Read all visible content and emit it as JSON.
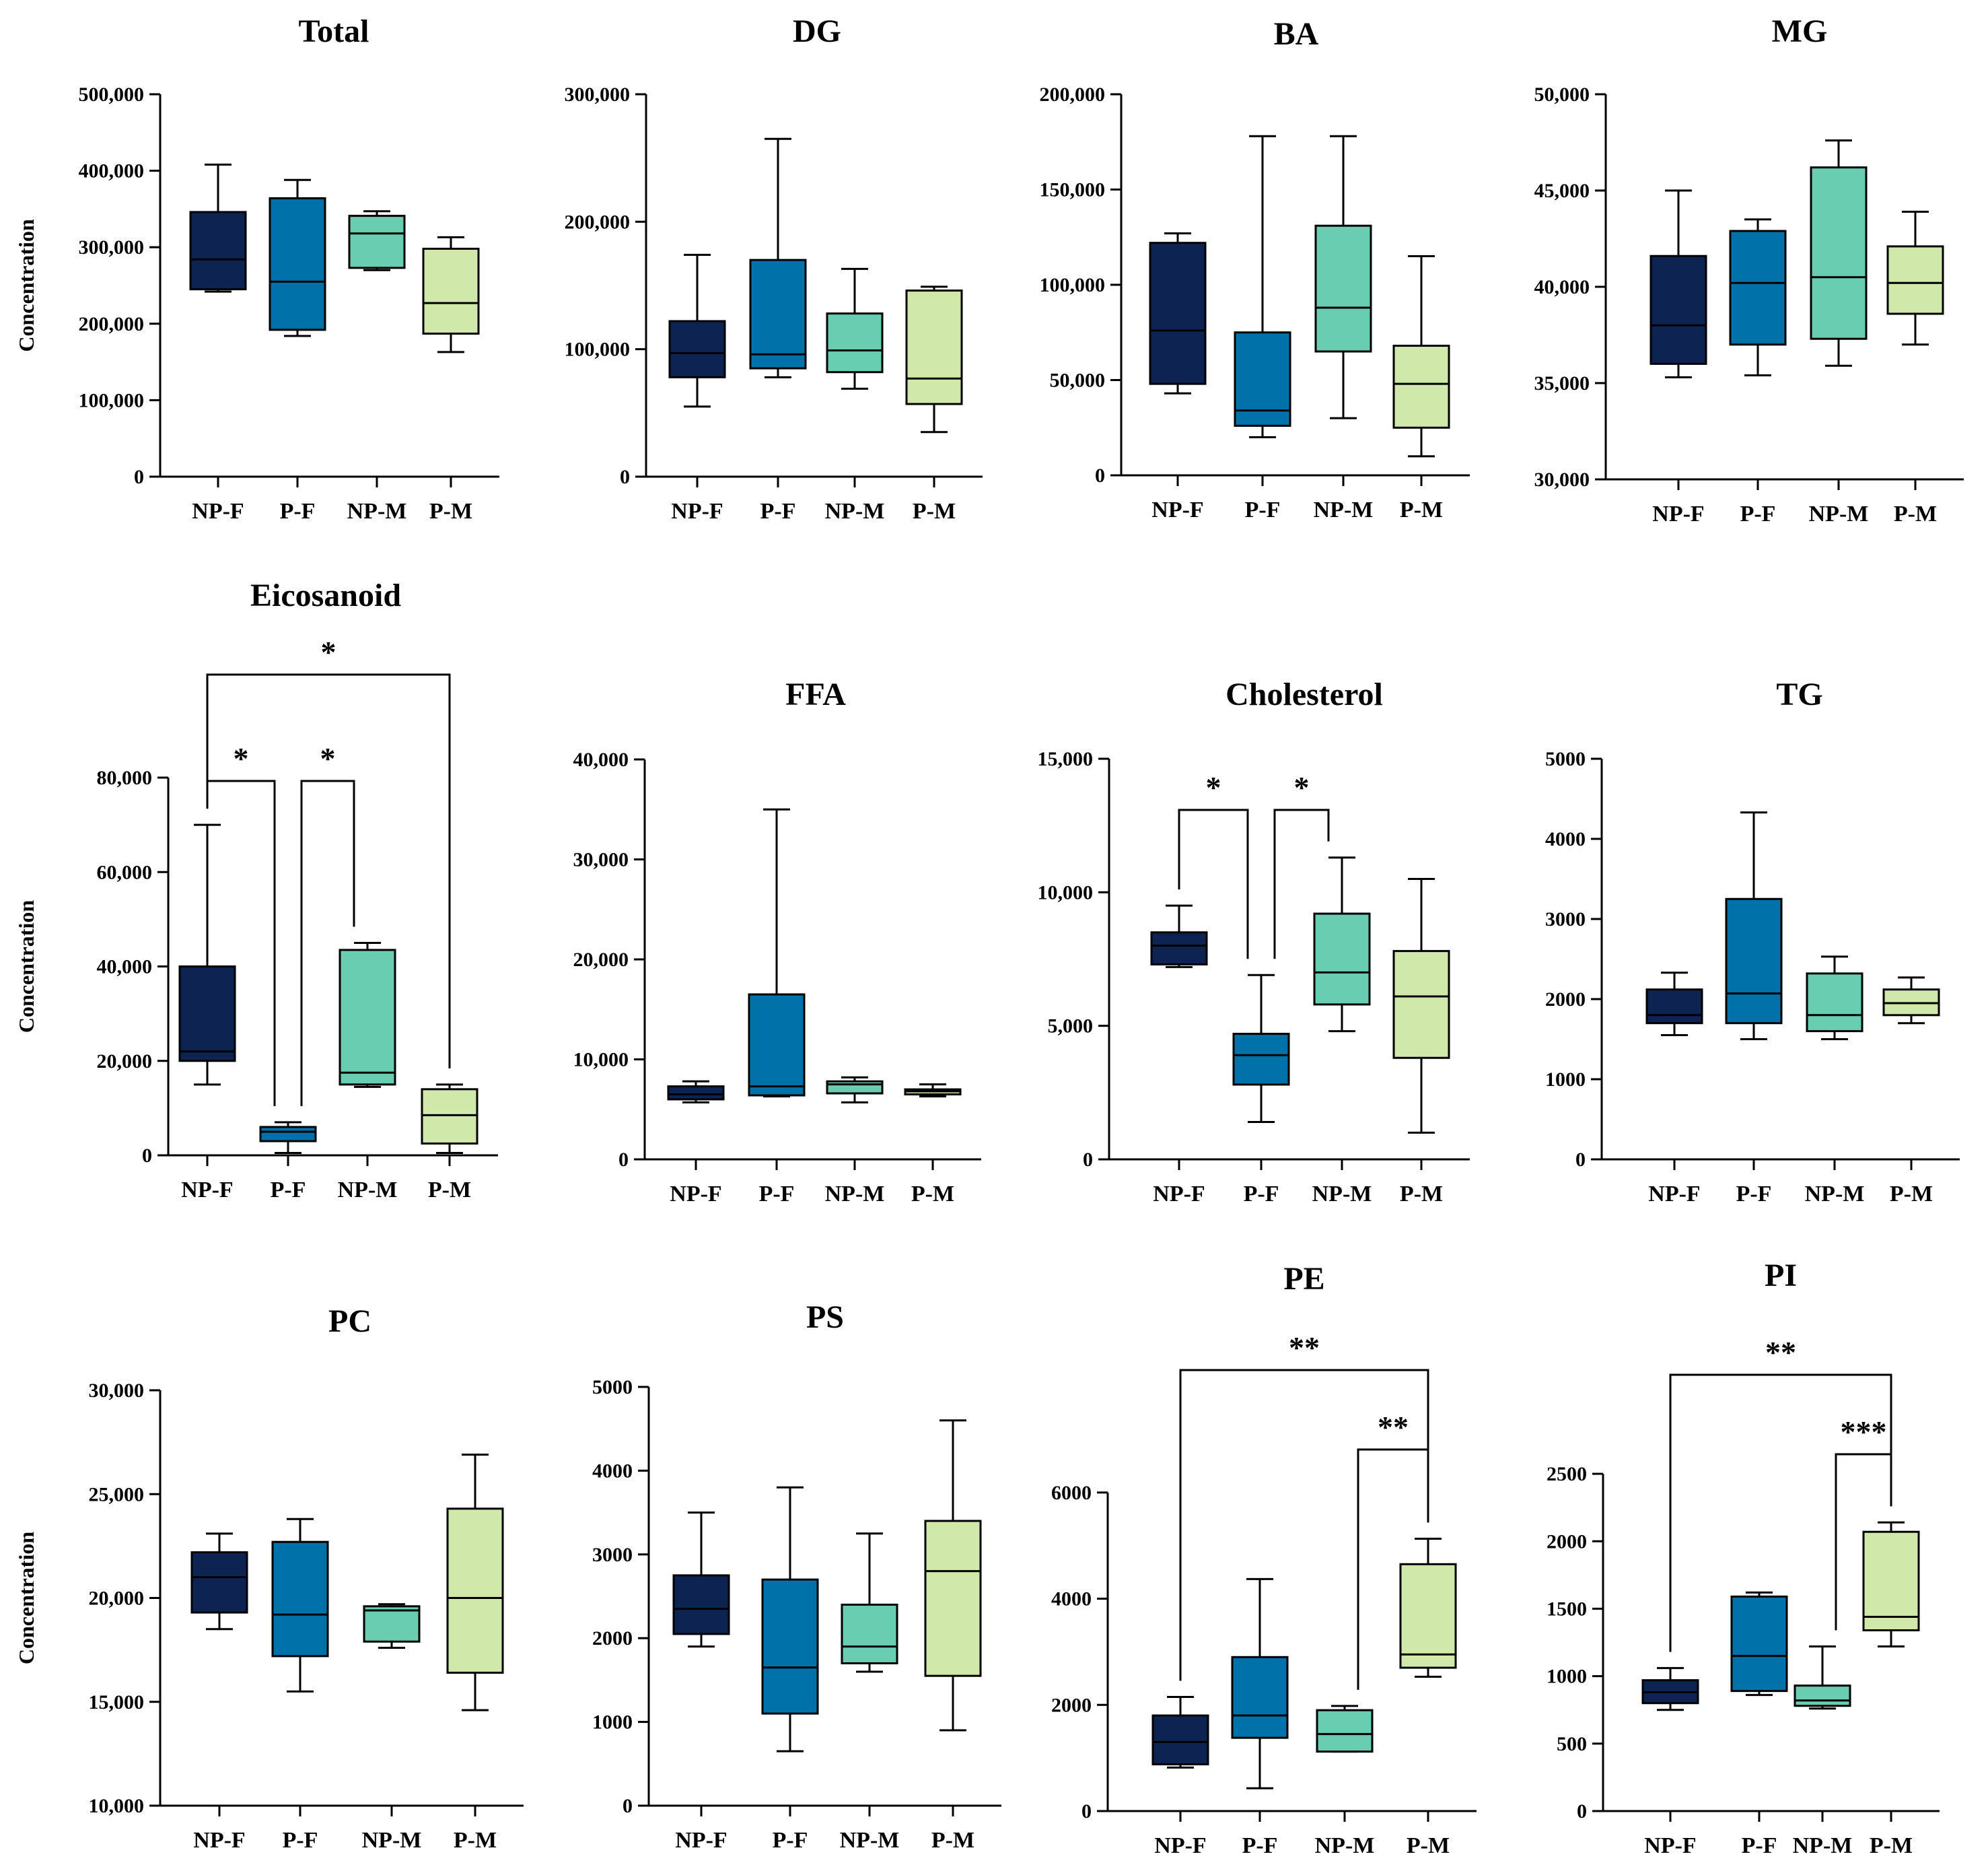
{
  "figure": {
    "colors": {
      "NP-F": "#0d2452",
      "P-F": "#0072a9",
      "NP-M": "#69cdb2",
      "P-M": "#d1e8ab"
    },
    "line_color": "#000000"
  },
  "chart_data": [
    {
      "type": "box",
      "title": "Total",
      "ylabel": "Concentration",
      "categories": [
        "NP-F",
        "P-F",
        "NP-M",
        "P-M"
      ],
      "ylim": [
        0,
        500000
      ],
      "yticks": [
        0,
        100000,
        200000,
        300000,
        400000,
        500000
      ],
      "ytick_labels": [
        "0",
        "100,000",
        "200,000",
        "300,000",
        "400,000",
        "500,000"
      ],
      "boxes": [
        {
          "min": 242000,
          "q1": 245000,
          "median": 284000,
          "q3": 346000,
          "max": 408000
        },
        {
          "min": 184000,
          "q1": 192000,
          "median": 255000,
          "q3": 364000,
          "max": 388000
        },
        {
          "min": 270000,
          "q1": 273000,
          "median": 318000,
          "q3": 341000,
          "max": 347000
        },
        {
          "min": 163000,
          "q1": 187000,
          "median": 227000,
          "q3": 298000,
          "max": 313000
        }
      ],
      "significance": []
    },
    {
      "type": "box",
      "title": "DG",
      "ylabel": "",
      "categories": [
        "NP-F",
        "P-F",
        "NP-M",
        "P-M"
      ],
      "ylim": [
        0,
        300000
      ],
      "yticks": [
        0,
        100000,
        200000,
        300000
      ],
      "ytick_labels": [
        "0",
        "100,000",
        "200,000",
        "300,000"
      ],
      "boxes": [
        {
          "min": 55000,
          "q1": 78000,
          "median": 97000,
          "q3": 122000,
          "max": 174000
        },
        {
          "min": 78000,
          "q1": 85000,
          "median": 96000,
          "q3": 170000,
          "max": 265000
        },
        {
          "min": 69000,
          "q1": 82000,
          "median": 99000,
          "q3": 128000,
          "max": 163000
        },
        {
          "min": 35000,
          "q1": 57000,
          "median": 77000,
          "q3": 146000,
          "max": 149000
        }
      ],
      "significance": []
    },
    {
      "type": "box",
      "title": "BA",
      "ylabel": "",
      "categories": [
        "NP-F",
        "P-F",
        "NP-M",
        "P-M"
      ],
      "ylim": [
        0,
        200000
      ],
      "yticks": [
        0,
        50000,
        100000,
        150000,
        200000
      ],
      "ytick_labels": [
        "0",
        "50,000",
        "100,000",
        "150,000",
        "200,000"
      ],
      "boxes": [
        {
          "min": 43000,
          "q1": 48000,
          "median": 76000,
          "q3": 122000,
          "max": 127000
        },
        {
          "min": 20000,
          "q1": 26000,
          "median": 34000,
          "q3": 75000,
          "max": 178000
        },
        {
          "min": 30000,
          "q1": 65000,
          "median": 88000,
          "q3": 131000,
          "max": 178000
        },
        {
          "min": 10000,
          "q1": 25000,
          "median": 48000,
          "q3": 68000,
          "max": 115000
        }
      ],
      "significance": []
    },
    {
      "type": "box",
      "title": "MG",
      "ylabel": "",
      "categories": [
        "NP-F",
        "P-F",
        "NP-M",
        "P-M"
      ],
      "ylim": [
        30000,
        50000
      ],
      "yticks": [
        30000,
        35000,
        40000,
        45000,
        50000
      ],
      "ytick_labels": [
        "30,000",
        "35,000",
        "40,000",
        "45,000",
        "50,000"
      ],
      "boxes": [
        {
          "min": 35300,
          "q1": 36000,
          "median": 38000,
          "q3": 41600,
          "max": 45000
        },
        {
          "min": 35400,
          "q1": 37000,
          "median": 40200,
          "q3": 42900,
          "max": 43500
        },
        {
          "min": 35900,
          "q1": 37300,
          "median": 40500,
          "q3": 46200,
          "max": 47600
        },
        {
          "min": 37000,
          "q1": 38600,
          "median": 40200,
          "q3": 42100,
          "max": 43900
        }
      ],
      "significance": []
    },
    {
      "type": "box",
      "title": "Eicosanoid",
      "ylabel": "Concentration",
      "categories": [
        "NP-F",
        "P-F",
        "NP-M",
        "P-M"
      ],
      "ylim": [
        0,
        80000
      ],
      "yticks": [
        0,
        20000,
        40000,
        60000,
        80000
      ],
      "ytick_labels": [
        "0",
        "20,000",
        "40,000",
        "60,000",
        "80,000"
      ],
      "boxes": [
        {
          "min": 15000,
          "q1": 20000,
          "median": 22000,
          "q3": 40000,
          "max": 70000
        },
        {
          "min": 500,
          "q1": 3000,
          "median": 5000,
          "q3": 6000,
          "max": 7000
        },
        {
          "min": 14500,
          "q1": 15000,
          "median": 17500,
          "q3": 43500,
          "max": 45000
        },
        {
          "min": 500,
          "q1": 2500,
          "median": 8500,
          "q3": 14000,
          "max": 15000
        }
      ],
      "significance": [
        {
          "from": "NP-F",
          "to": "P-F",
          "label": "*"
        },
        {
          "from": "P-F",
          "to": "NP-M",
          "label": "*"
        },
        {
          "from": "NP-F",
          "to": "P-M",
          "label": "*"
        }
      ]
    },
    {
      "type": "box",
      "title": "FFA",
      "ylabel": "",
      "categories": [
        "NP-F",
        "P-F",
        "NP-M",
        "P-M"
      ],
      "ylim": [
        0,
        40000
      ],
      "yticks": [
        0,
        10000,
        20000,
        30000,
        40000
      ],
      "ytick_labels": [
        "0",
        "10,000",
        "20,000",
        "30,000",
        "40,000"
      ],
      "boxes": [
        {
          "min": 5700,
          "q1": 6000,
          "median": 6500,
          "q3": 7300,
          "max": 7800
        },
        {
          "min": 6300,
          "q1": 6400,
          "median": 7300,
          "q3": 16500,
          "max": 35000
        },
        {
          "min": 5700,
          "q1": 6600,
          "median": 7500,
          "q3": 7800,
          "max": 8200
        },
        {
          "min": 6300,
          "q1": 6500,
          "median": 6800,
          "q3": 7000,
          "max": 7500
        }
      ],
      "significance": []
    },
    {
      "type": "box",
      "title": "Cholesterol",
      "ylabel": "",
      "categories": [
        "NP-F",
        "P-F",
        "NP-M",
        "P-M"
      ],
      "ylim": [
        0,
        15000
      ],
      "yticks": [
        0,
        5000,
        10000,
        15000
      ],
      "ytick_labels": [
        "0",
        "5,000",
        "10,000",
        "15,000"
      ],
      "boxes": [
        {
          "min": 7200,
          "q1": 7300,
          "median": 8000,
          "q3": 8500,
          "max": 9500
        },
        {
          "min": 1400,
          "q1": 2800,
          "median": 3900,
          "q3": 4700,
          "max": 6900
        },
        {
          "min": 4800,
          "q1": 5800,
          "median": 7000,
          "q3": 9200,
          "max": 11300
        },
        {
          "min": 1000,
          "q1": 3800,
          "median": 6100,
          "q3": 7800,
          "max": 10500
        }
      ],
      "significance": [
        {
          "from": "NP-F",
          "to": "P-F",
          "label": "*"
        },
        {
          "from": "P-F",
          "to": "NP-M",
          "label": "*"
        }
      ]
    },
    {
      "type": "box",
      "title": "TG",
      "ylabel": "",
      "categories": [
        "NP-F",
        "P-F",
        "NP-M",
        "P-M"
      ],
      "ylim": [
        0,
        5000
      ],
      "yticks": [
        0,
        1000,
        2000,
        3000,
        4000,
        5000
      ],
      "ytick_labels": [
        "0",
        "1000",
        "2000",
        "3000",
        "4000",
        "5000"
      ],
      "boxes": [
        {
          "min": 1550,
          "q1": 1700,
          "median": 1800,
          "q3": 2120,
          "max": 2330
        },
        {
          "min": 1500,
          "q1": 1700,
          "median": 2070,
          "q3": 3250,
          "max": 4330
        },
        {
          "min": 1500,
          "q1": 1600,
          "median": 1800,
          "q3": 2320,
          "max": 2530
        },
        {
          "min": 1700,
          "q1": 1800,
          "median": 1950,
          "q3": 2120,
          "max": 2270
        }
      ],
      "significance": []
    },
    {
      "type": "box",
      "title": "PC",
      "ylabel": "Concentration",
      "categories": [
        "NP-F",
        "P-F",
        "NP-M",
        "P-M"
      ],
      "ylim": [
        10000,
        30000
      ],
      "yticks": [
        10000,
        15000,
        20000,
        25000,
        30000
      ],
      "ytick_labels": [
        "10,000",
        "15,000",
        "20,000",
        "25,000",
        "30,000"
      ],
      "boxes": [
        {
          "min": 18500,
          "q1": 19300,
          "median": 21000,
          "q3": 22200,
          "max": 23100
        },
        {
          "min": 15500,
          "q1": 17200,
          "median": 19200,
          "q3": 22700,
          "max": 23800
        },
        {
          "min": 17600,
          "q1": 17900,
          "median": 19400,
          "q3": 19600,
          "max": 19700
        },
        {
          "min": 14600,
          "q1": 16400,
          "median": 20000,
          "q3": 24300,
          "max": 26900
        }
      ],
      "significance": []
    },
    {
      "type": "box",
      "title": "PS",
      "ylabel": "",
      "categories": [
        "NP-F",
        "P-F",
        "NP-M",
        "P-M"
      ],
      "ylim": [
        0,
        5000
      ],
      "yticks": [
        0,
        1000,
        2000,
        3000,
        4000,
        5000
      ],
      "ytick_labels": [
        "0",
        "1000",
        "2000",
        "3000",
        "4000",
        "5000"
      ],
      "boxes": [
        {
          "min": 1900,
          "q1": 2050,
          "median": 2350,
          "q3": 2750,
          "max": 3500
        },
        {
          "min": 650,
          "q1": 1100,
          "median": 1650,
          "q3": 2700,
          "max": 3800
        },
        {
          "min": 1600,
          "q1": 1700,
          "median": 1900,
          "q3": 2400,
          "max": 3250
        },
        {
          "min": 900,
          "q1": 1550,
          "median": 2800,
          "q3": 3400,
          "max": 4600
        }
      ],
      "significance": []
    },
    {
      "type": "box",
      "title": "PE",
      "ylabel": "",
      "categories": [
        "NP-F",
        "P-F",
        "NP-M",
        "P-M"
      ],
      "ylim": [
        0,
        7000
      ],
      "yticks": [
        0,
        2000,
        4000,
        6000
      ],
      "ytick_labels": [
        "0",
        "2000",
        "4000",
        "6000"
      ],
      "boxes": [
        {
          "min": 820,
          "q1": 880,
          "median": 1300,
          "q3": 1800,
          "max": 2150
        },
        {
          "min": 430,
          "q1": 1380,
          "median": 1800,
          "q3": 2900,
          "max": 4370
        },
        {
          "min": 1120,
          "q1": 1120,
          "median": 1450,
          "q3": 1900,
          "max": 1980
        },
        {
          "min": 2530,
          "q1": 2700,
          "median": 2950,
          "q3": 4650,
          "max": 5130
        }
      ],
      "significance": [
        {
          "from": "NP-M",
          "to": "P-M",
          "label": "**"
        },
        {
          "from": "NP-F",
          "to": "P-M",
          "label": "**"
        }
      ]
    },
    {
      "type": "box",
      "title": "PI",
      "ylabel": "",
      "categories": [
        "NP-F",
        "P-F",
        "NP-M",
        "P-M"
      ],
      "ylim": [
        0,
        2700
      ],
      "yticks": [
        0,
        500,
        1000,
        1500,
        2000,
        2500
      ],
      "ytick_labels": [
        "0",
        "500",
        "1000",
        "1500",
        "2000",
        "2500"
      ],
      "boxes": [
        {
          "min": 750,
          "q1": 800,
          "median": 880,
          "q3": 970,
          "max": 1060
        },
        {
          "min": 860,
          "q1": 890,
          "median": 1150,
          "q3": 1590,
          "max": 1620
        },
        {
          "min": 760,
          "q1": 780,
          "median": 820,
          "q3": 930,
          "max": 1220
        },
        {
          "min": 1220,
          "q1": 1340,
          "median": 1440,
          "q3": 2070,
          "max": 2140
        }
      ],
      "significance": [
        {
          "from": "NP-M",
          "to": "P-M",
          "label": "***"
        },
        {
          "from": "NP-F",
          "to": "P-M",
          "label": "**"
        }
      ]
    }
  ]
}
